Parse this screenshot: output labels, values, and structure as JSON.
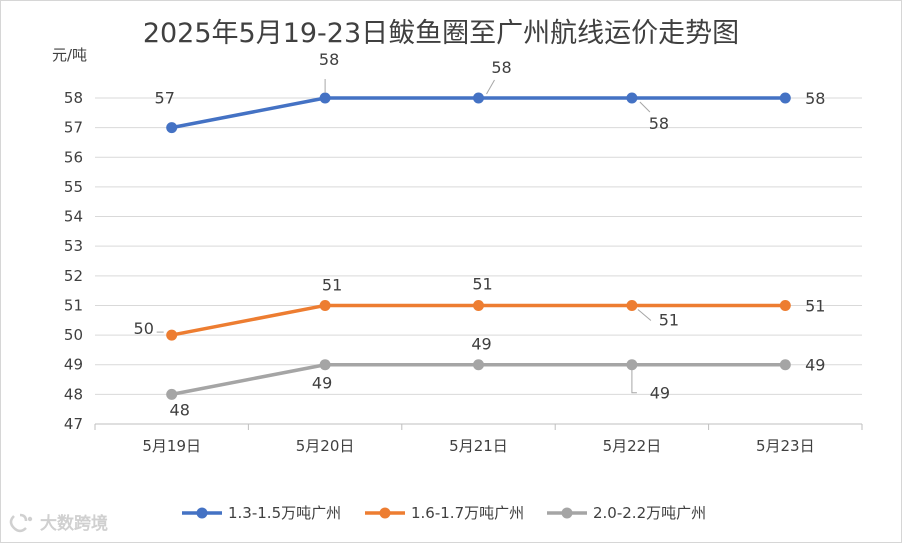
{
  "watermark": "大数跨境",
  "chart_data": {
    "type": "line",
    "title": "2025年5月19-23日鲅鱼圈至广州航线运价走势图",
    "ylabel": "元/吨",
    "xlabel": "",
    "categories": [
      "5月19日",
      "5月20日",
      "5月21日",
      "5月22日",
      "5月23日"
    ],
    "ylim": [
      47,
      58
    ],
    "yticks": [
      47,
      48,
      49,
      50,
      51,
      52,
      53,
      54,
      55,
      56,
      57,
      58
    ],
    "grid": true,
    "legend_position": "bottom",
    "series": [
      {
        "name": "1.3-1.5万吨广州",
        "color": "#4472c4",
        "values": [
          57,
          58,
          58,
          58,
          58
        ]
      },
      {
        "name": "1.6-1.7万吨广州",
        "color": "#ed7d31",
        "values": [
          50,
          51,
          51,
          51,
          51
        ]
      },
      {
        "name": "2.0-2.2万吨广州",
        "color": "#a5a5a5",
        "values": [
          48,
          49,
          49,
          49,
          49
        ]
      }
    ]
  }
}
